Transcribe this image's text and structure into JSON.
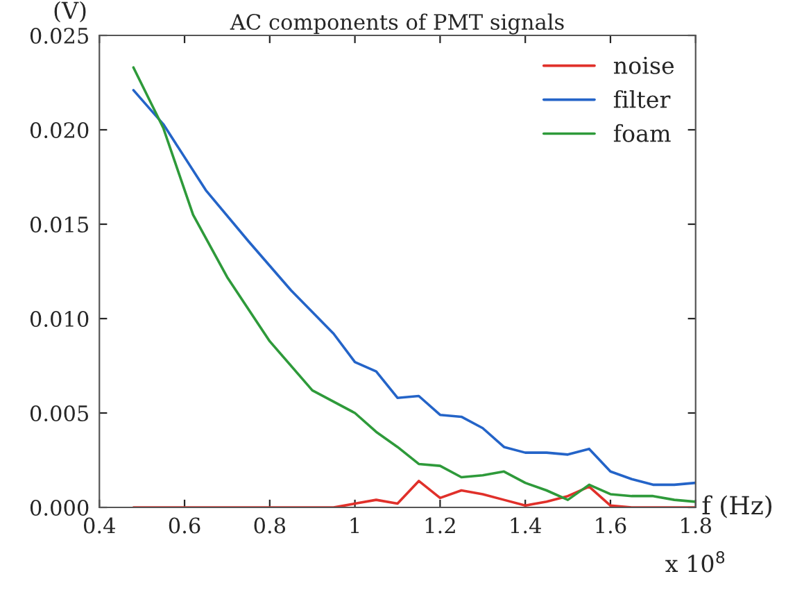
{
  "chart_data": {
    "type": "line",
    "title": "AC components of PMT signals",
    "xlabel": "f (Hz)",
    "ylabel": "(V)",
    "annotations": [
      "x 10$^{8}$"
    ],
    "xlim": [
      0.4,
      1.8
    ],
    "xticks": [
      0.4,
      0.6,
      0.8,
      1,
      1.2,
      1.4,
      1.6,
      1.8
    ],
    "ylim": [
      0,
      0.025
    ],
    "yticks": [
      {
        "value": 0,
        "label": "0.000"
      },
      {
        "value": 0.005,
        "label": "0.005"
      },
      {
        "value": 0.01,
        "label": "0.010"
      },
      {
        "value": 0.015,
        "label": "0.015"
      },
      {
        "value": 0.02,
        "label": "0.020"
      },
      {
        "value": 0.025,
        "label": "0.025"
      }
    ],
    "grid": false,
    "legend": "top right",
    "series": [
      {
        "name": "noise",
        "color": "#e0302a",
        "x": [
          0.48,
          0.9,
          0.95,
          1.0,
          1.05,
          1.1,
          1.15,
          1.2,
          1.25,
          1.3,
          1.35,
          1.4,
          1.45,
          1.5,
          1.55,
          1.6,
          1.65,
          1.8
        ],
        "values": [
          0,
          0,
          0,
          0.0002,
          0.0004,
          0.0002,
          0.0014,
          0.0005,
          0.0009,
          0.0007,
          0.0004,
          0.0001,
          0.0003,
          0.0006,
          0.0011,
          0.0001,
          0,
          0
        ]
      },
      {
        "name": "filter",
        "color": "#2464c8",
        "x": [
          0.48,
          0.55,
          0.65,
          0.75,
          0.85,
          0.95,
          1.0,
          1.05,
          1.1,
          1.15,
          1.2,
          1.25,
          1.3,
          1.35,
          1.4,
          1.45,
          1.5,
          1.55,
          1.6,
          1.65,
          1.7,
          1.75,
          1.8
        ],
        "values": [
          0.0221,
          0.0203,
          0.0168,
          0.0141,
          0.0115,
          0.0092,
          0.0077,
          0.0072,
          0.0058,
          0.0059,
          0.0049,
          0.0048,
          0.0042,
          0.0032,
          0.0029,
          0.0029,
          0.0028,
          0.0031,
          0.0019,
          0.0015,
          0.0012,
          0.0012,
          0.0013
        ]
      },
      {
        "name": "foam",
        "color": "#2e9a3a",
        "x": [
          0.48,
          0.55,
          0.62,
          0.7,
          0.8,
          0.9,
          1.0,
          1.05,
          1.1,
          1.15,
          1.2,
          1.25,
          1.3,
          1.35,
          1.4,
          1.45,
          1.5,
          1.55,
          1.6,
          1.65,
          1.7,
          1.75,
          1.8
        ],
        "values": [
          0.0233,
          0.0201,
          0.0155,
          0.0122,
          0.0088,
          0.0062,
          0.005,
          0.004,
          0.0032,
          0.0023,
          0.0022,
          0.0016,
          0.0017,
          0.0019,
          0.0013,
          0.0009,
          0.0004,
          0.0012,
          0.0007,
          0.0006,
          0.0006,
          0.0004,
          0.0003
        ]
      }
    ]
  }
}
